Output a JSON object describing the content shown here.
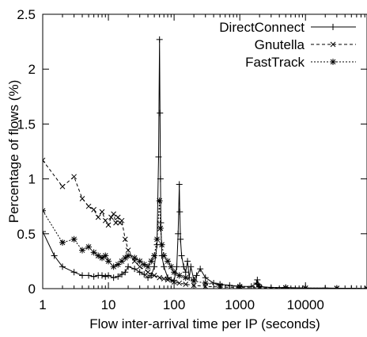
{
  "chart_data": {
    "type": "line",
    "title": "",
    "xlabel": "Flow inter-arrival time per IP (seconds)",
    "ylabel": "Percentage of flows (%)",
    "x_scale": "log",
    "xlim": [
      1,
      86400
    ],
    "ylim": [
      0,
      2.5
    ],
    "x_ticks": [
      1,
      10,
      100,
      1000,
      10000
    ],
    "x_tick_labels": [
      "1",
      "10",
      "100",
      "1000",
      "10000"
    ],
    "y_ticks": [
      0,
      0.5,
      1,
      1.5,
      2,
      2.5
    ],
    "y_tick_labels": [
      "0",
      "0.5",
      "1",
      "1.5",
      "2",
      "2.5"
    ],
    "grid": false,
    "legend_position": "top-right",
    "series": [
      {
        "name": "DirectConnect",
        "style": "solid",
        "marker": "plus",
        "x": [
          1,
          1.5,
          2,
          3,
          4,
          5,
          6,
          7,
          8,
          9,
          10,
          12,
          14,
          16,
          18,
          20,
          25,
          30,
          35,
          40,
          45,
          50,
          55,
          58,
          60,
          61,
          62,
          63,
          65,
          70,
          80,
          90,
          100,
          110,
          115,
          120,
          122,
          125,
          130,
          140,
          150,
          160,
          170,
          180,
          200,
          220,
          250,
          300,
          400,
          500,
          700,
          1000,
          1500,
          1800,
          1850,
          1900,
          2000,
          3000,
          5000,
          10000,
          20000,
          50000,
          86400
        ],
        "y": [
          0.52,
          0.3,
          0.2,
          0.15,
          0.12,
          0.12,
          0.11,
          0.12,
          0.12,
          0.11,
          0.12,
          0.1,
          0.11,
          0.13,
          0.15,
          0.2,
          0.18,
          0.15,
          0.13,
          0.1,
          0.12,
          0.2,
          0.4,
          1.2,
          2.27,
          1.6,
          1.0,
          0.6,
          0.3,
          0.2,
          0.1,
          0.08,
          0.07,
          0.2,
          0.5,
          0.95,
          0.7,
          0.45,
          0.3,
          0.2,
          0.15,
          0.25,
          0.1,
          0.2,
          0.08,
          0.12,
          0.18,
          0.1,
          0.05,
          0.04,
          0.03,
          0.02,
          0.02,
          0.05,
          0.08,
          0.04,
          0.02,
          0.01,
          0.01,
          0.005,
          0.005,
          0.003,
          0.002
        ]
      },
      {
        "name": "Gnutella",
        "style": "dashed",
        "marker": "x",
        "x": [
          1,
          2,
          3,
          4,
          5,
          6,
          7,
          8,
          9,
          10,
          11,
          12,
          13,
          14,
          15,
          16,
          18,
          20,
          25,
          30,
          40,
          50,
          60,
          70,
          80,
          100,
          120,
          150,
          200,
          300,
          500,
          1000,
          2000,
          5000,
          10000,
          30000,
          86400
        ],
        "y": [
          1.17,
          0.93,
          1.02,
          0.82,
          0.75,
          0.72,
          0.65,
          0.7,
          0.62,
          0.58,
          0.65,
          0.68,
          0.6,
          0.65,
          0.6,
          0.62,
          0.45,
          0.35,
          0.25,
          0.2,
          0.15,
          0.12,
          0.1,
          0.09,
          0.08,
          0.06,
          0.05,
          0.04,
          0.03,
          0.02,
          0.015,
          0.01,
          0.008,
          0.005,
          0.004,
          0.003,
          0.002
        ]
      },
      {
        "name": "FastTrack",
        "style": "dotted",
        "marker": "star",
        "x": [
          1,
          2,
          3,
          4,
          5,
          6,
          7,
          8,
          9,
          10,
          12,
          14,
          16,
          18,
          20,
          25,
          30,
          35,
          40,
          45,
          50,
          55,
          60,
          62,
          65,
          70,
          80,
          90,
          100,
          120,
          150,
          200,
          300,
          500,
          1000,
          2000,
          5000,
          10000,
          30000,
          86400
        ],
        "y": [
          0.71,
          0.42,
          0.45,
          0.35,
          0.38,
          0.33,
          0.3,
          0.28,
          0.3,
          0.25,
          0.2,
          0.22,
          0.25,
          0.28,
          0.3,
          0.28,
          0.25,
          0.22,
          0.2,
          0.25,
          0.3,
          0.45,
          0.8,
          0.55,
          0.4,
          0.3,
          0.25,
          0.2,
          0.15,
          0.12,
          0.1,
          0.07,
          0.05,
          0.03,
          0.02,
          0.015,
          0.008,
          0.005,
          0.003,
          0.002
        ]
      }
    ]
  }
}
